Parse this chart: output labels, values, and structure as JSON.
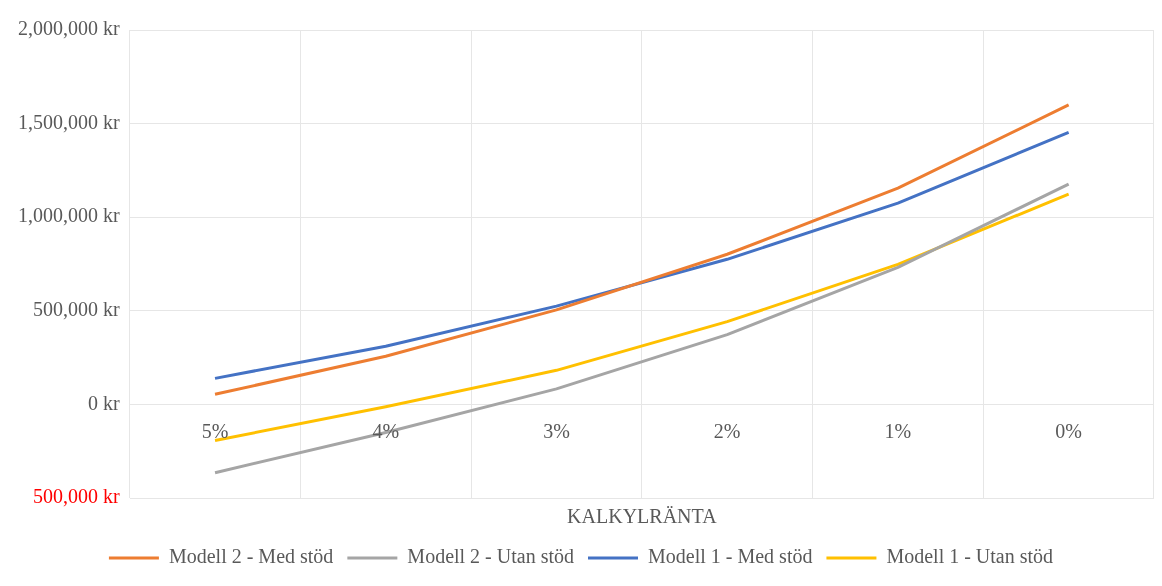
{
  "chart_data": {
    "type": "line",
    "xlabel": "KALKYLRÄNTA",
    "categories": [
      "5%",
      "4%",
      "3%",
      "2%",
      "1%",
      "0%"
    ],
    "series": [
      {
        "name": "Modell 2 - Med stöd",
        "color": "#ed7d31",
        "values": [
          54000,
          257000,
          505000,
          802000,
          1155000,
          1600000
        ]
      },
      {
        "name": "Modell 2 - Utan stöd",
        "color": "#a5a5a5",
        "values": [
          -365000,
          -150000,
          83000,
          373000,
          732000,
          1177000
        ]
      },
      {
        "name": "Modell 1 - Med stöd",
        "color": "#4472c4",
        "values": [
          139000,
          311000,
          525000,
          775000,
          1075000,
          1453000
        ]
      },
      {
        "name": "Modell 1 - Utan stöd",
        "color": "#ffc000",
        "values": [
          -193000,
          -13000,
          182000,
          442000,
          748000,
          1123000
        ]
      }
    ],
    "ylim": [
      -500000,
      2000000
    ],
    "yticks": [
      {
        "value": -500000,
        "label": "500,000 kr"
      },
      {
        "value": 0,
        "label": "0 kr"
      },
      {
        "value": 500000,
        "label": "500,000 kr"
      },
      {
        "value": 1000000,
        "label": "1,000,000 kr"
      },
      {
        "value": 1500000,
        "label": "1,500,000 kr"
      },
      {
        "value": 2000000,
        "label": "2,000,000 kr"
      }
    ],
    "grid": true,
    "legend": "bottom",
    "marker": "none",
    "line_style": "solid"
  }
}
